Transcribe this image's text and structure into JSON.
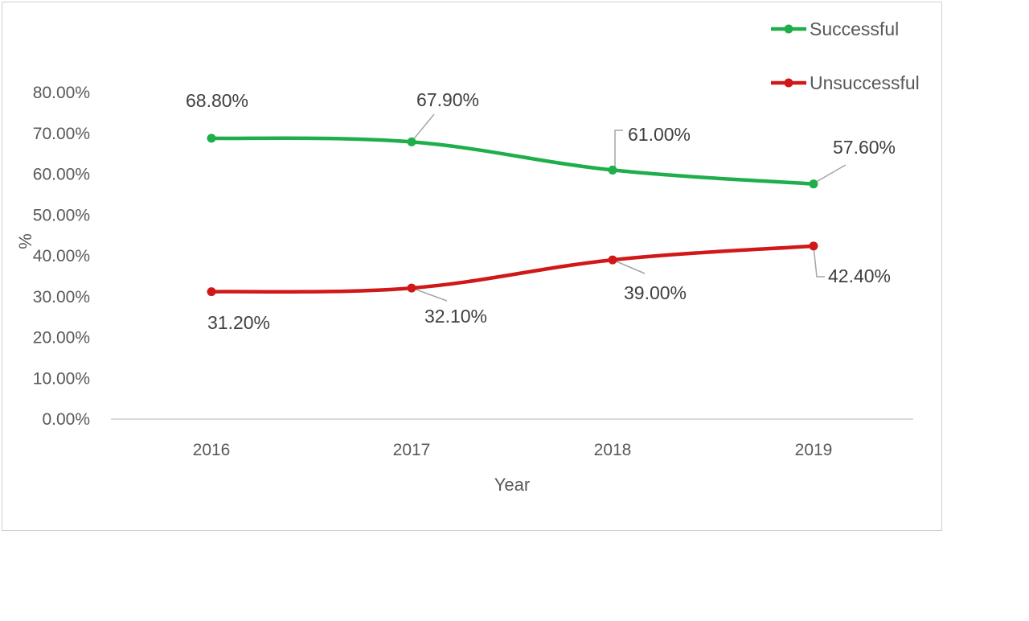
{
  "chart_data": {
    "type": "line",
    "categories": [
      "2016",
      "2017",
      "2018",
      "2019"
    ],
    "series": [
      {
        "name": "Successful",
        "color": "#1fae4b",
        "values": [
          68.8,
          67.9,
          61.0,
          57.6
        ],
        "labels": [
          "68.80%",
          "67.90%",
          "61.00%",
          "57.60%"
        ]
      },
      {
        "name": "Unsuccessful",
        "color": "#d01818",
        "values": [
          31.2,
          32.1,
          39.0,
          42.4
        ],
        "labels": [
          "31.20%",
          "32.10%",
          "39.00%",
          "42.40%"
        ]
      }
    ],
    "title": "",
    "xlabel": "Year",
    "ylabel": "%",
    "ylim": [
      0,
      80
    ],
    "yticks": [
      0,
      10,
      20,
      30,
      40,
      50,
      60,
      70,
      80
    ],
    "ytick_labels": [
      "0.00%",
      "10.00%",
      "20.00%",
      "30.00%",
      "40.00%",
      "50.00%",
      "60.00%",
      "70.00%",
      "80.00%"
    ],
    "grid": false,
    "legend_position": "top-right"
  }
}
